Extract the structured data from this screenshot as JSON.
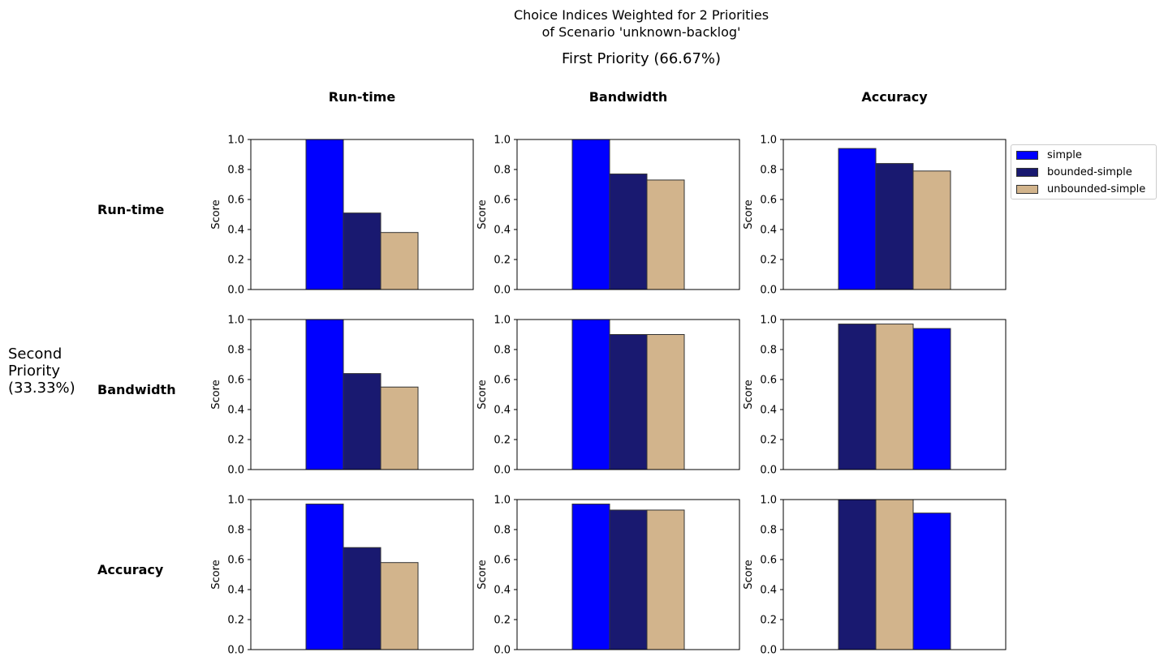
{
  "title": {
    "line1": "Choice Indices Weighted for 2 Priorities",
    "line2": "of Scenario 'unknown-backlog'",
    "first_priority": "First Priority (66.67%)"
  },
  "side_label": {
    "line1": "Second",
    "line2": "Priority",
    "line3": "(33.33%)"
  },
  "column_headers": [
    "Run-time",
    "Bandwidth",
    "Accuracy"
  ],
  "row_headers": [
    "Run-time",
    "Bandwidth",
    "Accuracy"
  ],
  "legend": [
    {
      "label": "simple",
      "color": "#0000FF"
    },
    {
      "label": "bounded-simple",
      "color": "#191970"
    },
    {
      "label": "unbounded-simple",
      "color": "#D2B48C"
    }
  ],
  "chart_data": {
    "type": "bar",
    "series_names": [
      "simple",
      "bounded-simple",
      "unbounded-simple"
    ],
    "colors": {
      "simple": "#0000FF",
      "bounded-simple": "#191970",
      "unbounded-simple": "#D2B48C"
    },
    "ylabel": "Score",
    "ylim": [
      0,
      1.0
    ],
    "yticks": [
      "0.0",
      "0.2",
      "0.4",
      "0.6",
      "0.8",
      "1.0"
    ],
    "grid": false,
    "legend_position": "right of top-right subplot",
    "subplots": [
      {
        "row": "Run-time",
        "col": "Run-time",
        "bars": [
          {
            "series": "simple",
            "value": 1.0
          },
          {
            "series": "bounded-simple",
            "value": 0.51
          },
          {
            "series": "unbounded-simple",
            "value": 0.38
          }
        ]
      },
      {
        "row": "Run-time",
        "col": "Bandwidth",
        "bars": [
          {
            "series": "simple",
            "value": 1.0
          },
          {
            "series": "bounded-simple",
            "value": 0.77
          },
          {
            "series": "unbounded-simple",
            "value": 0.73
          }
        ]
      },
      {
        "row": "Run-time",
        "col": "Accuracy",
        "bars": [
          {
            "series": "simple",
            "value": 0.94
          },
          {
            "series": "bounded-simple",
            "value": 0.84
          },
          {
            "series": "unbounded-simple",
            "value": 0.79
          }
        ]
      },
      {
        "row": "Bandwidth",
        "col": "Run-time",
        "bars": [
          {
            "series": "simple",
            "value": 1.0
          },
          {
            "series": "bounded-simple",
            "value": 0.64
          },
          {
            "series": "unbounded-simple",
            "value": 0.55
          }
        ]
      },
      {
        "row": "Bandwidth",
        "col": "Bandwidth",
        "bars": [
          {
            "series": "simple",
            "value": 1.0
          },
          {
            "series": "bounded-simple",
            "value": 0.9
          },
          {
            "series": "unbounded-simple",
            "value": 0.9
          }
        ]
      },
      {
        "row": "Bandwidth",
        "col": "Accuracy",
        "bars": [
          {
            "series": "bounded-simple",
            "value": 0.97
          },
          {
            "series": "unbounded-simple",
            "value": 0.97
          },
          {
            "series": "simple",
            "value": 0.94
          }
        ]
      },
      {
        "row": "Accuracy",
        "col": "Run-time",
        "bars": [
          {
            "series": "simple",
            "value": 0.97
          },
          {
            "series": "bounded-simple",
            "value": 0.68
          },
          {
            "series": "unbounded-simple",
            "value": 0.58
          }
        ]
      },
      {
        "row": "Accuracy",
        "col": "Bandwidth",
        "bars": [
          {
            "series": "simple",
            "value": 0.97
          },
          {
            "series": "bounded-simple",
            "value": 0.93
          },
          {
            "series": "unbounded-simple",
            "value": 0.93
          }
        ]
      },
      {
        "row": "Accuracy",
        "col": "Accuracy",
        "bars": [
          {
            "series": "bounded-simple",
            "value": 1.0
          },
          {
            "series": "unbounded-simple",
            "value": 1.0
          },
          {
            "series": "simple",
            "value": 0.91
          }
        ]
      }
    ]
  }
}
